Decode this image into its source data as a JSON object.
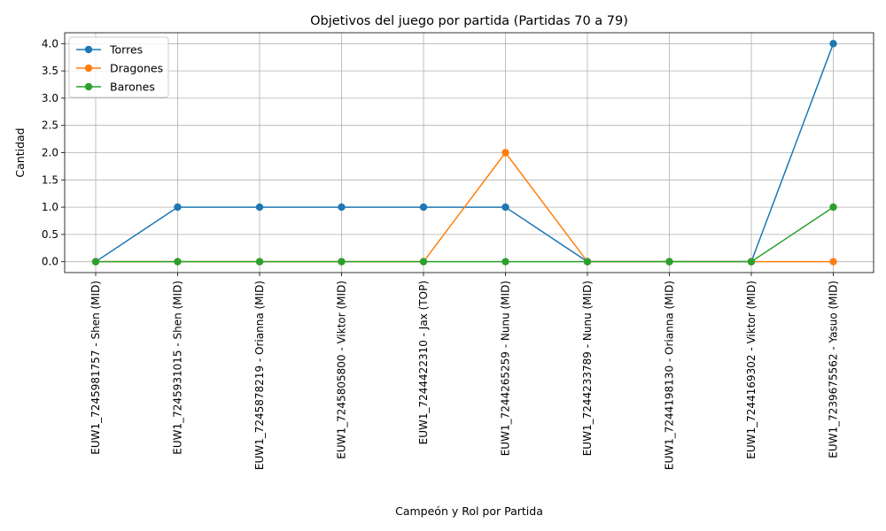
{
  "chart_data": {
    "type": "line",
    "title": "Objetivos del juego por partida (Partidas 70 a 79)",
    "xlabel": "Campeón y Rol por Partida",
    "ylabel": "Cantidad",
    "categories": [
      "EUW1_7245981757 - Shen (MID)",
      "EUW1_7245931015 - Shen (MID)",
      "EUW1_7245878219 - Orianna (MID)",
      "EUW1_7245805800 - Viktor (MID)",
      "EUW1_7244422310 - Jax (TOP)",
      "EUW1_7244265259 - Nunu (MID)",
      "EUW1_7244233789 - Nunu (MID)",
      "EUW1_7244198130 - Orianna (MID)",
      "EUW1_7244169302 - Viktor (MID)",
      "EUW1_7239675562 - Yasuo (MID)"
    ],
    "series": [
      {
        "name": "Torres",
        "color": "#1f77b4",
        "values": [
          0,
          1,
          1,
          1,
          1,
          1,
          0,
          0,
          0,
          4
        ]
      },
      {
        "name": "Dragones",
        "color": "#ff7f0e",
        "values": [
          0,
          0,
          0,
          0,
          0,
          2,
          0,
          0,
          0,
          0
        ]
      },
      {
        "name": "Barones",
        "color": "#2ca02c",
        "values": [
          0,
          0,
          0,
          0,
          0,
          0,
          0,
          0,
          0,
          1
        ]
      }
    ],
    "yticks": [
      "0.0",
      "0.5",
      "1.0",
      "1.5",
      "2.0",
      "2.5",
      "3.0",
      "3.5",
      "4.0"
    ],
    "ylim": [
      -0.2,
      4.2
    ],
    "grid": true,
    "legend_position": "top-left"
  }
}
